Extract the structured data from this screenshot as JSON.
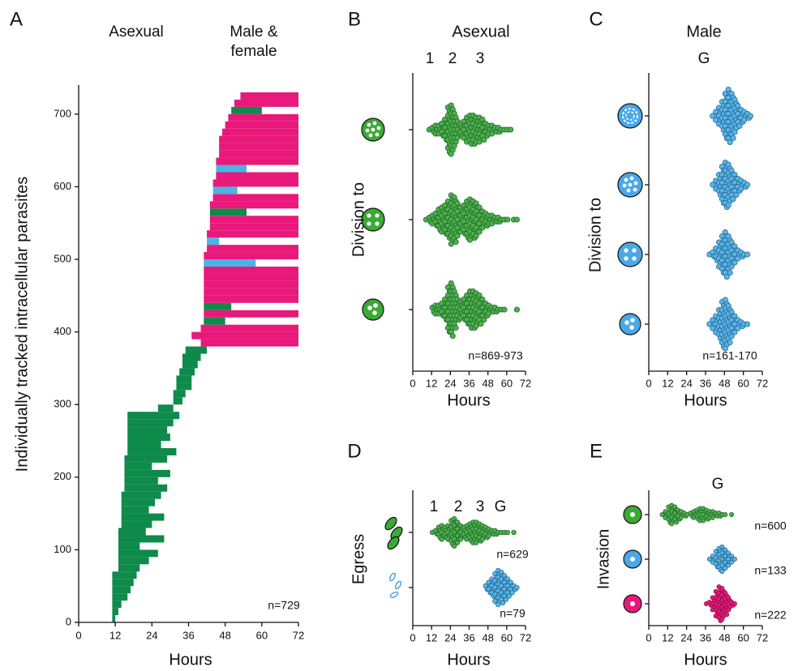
{
  "chart_data": [
    {
      "type": "range",
      "label": "A",
      "annotations": [
        "Asexual",
        "Male &",
        "female"
      ],
      "xlabel": "Hours",
      "ylabel": "Individually tracked intracellular parasites",
      "note": "n=729",
      "xlim": [
        0,
        72
      ],
      "xticks": [
        0,
        12,
        24,
        36,
        48,
        60,
        72
      ],
      "ylim": [
        0,
        740
      ],
      "yticks": [
        0,
        100,
        200,
        300,
        400,
        500,
        600,
        700
      ],
      "row_height": 10,
      "rows": [
        {
          "y": 0,
          "start": 11,
          "end": 12,
          "color": "#0e8a4a"
        },
        {
          "y": 10,
          "start": 11,
          "end": 13,
          "color": "#0e8a4a"
        },
        {
          "y": 20,
          "start": 11,
          "end": 14,
          "color": "#0e8a4a"
        },
        {
          "y": 30,
          "start": 11,
          "end": 16,
          "color": "#0e8a4a"
        },
        {
          "y": 40,
          "start": 11,
          "end": 17,
          "color": "#0e8a4a"
        },
        {
          "y": 50,
          "start": 11,
          "end": 18,
          "color": "#0e8a4a"
        },
        {
          "y": 60,
          "start": 11,
          "end": 19,
          "color": "#0e8a4a"
        },
        {
          "y": 70,
          "start": 13,
          "end": 20,
          "color": "#0e8a4a"
        },
        {
          "y": 80,
          "start": 13,
          "end": 23,
          "color": "#0e8a4a"
        },
        {
          "y": 90,
          "start": 13,
          "end": 26,
          "color": "#0e8a4a"
        },
        {
          "y": 100,
          "start": 13,
          "end": 20,
          "color": "#0e8a4a"
        },
        {
          "y": 110,
          "start": 13,
          "end": 28,
          "color": "#0e8a4a"
        },
        {
          "y": 120,
          "start": 13,
          "end": 22,
          "color": "#0e8a4a"
        },
        {
          "y": 130,
          "start": 14,
          "end": 24,
          "color": "#0e8a4a"
        },
        {
          "y": 140,
          "start": 14,
          "end": 28,
          "color": "#0e8a4a"
        },
        {
          "y": 150,
          "start": 14,
          "end": 23,
          "color": "#0e8a4a"
        },
        {
          "y": 160,
          "start": 14,
          "end": 25,
          "color": "#0e8a4a"
        },
        {
          "y": 170,
          "start": 14,
          "end": 27,
          "color": "#0e8a4a"
        },
        {
          "y": 180,
          "start": 15,
          "end": 29,
          "color": "#0e8a4a"
        },
        {
          "y": 190,
          "start": 15,
          "end": 26,
          "color": "#0e8a4a"
        },
        {
          "y": 200,
          "start": 15,
          "end": 30,
          "color": "#0e8a4a"
        },
        {
          "y": 210,
          "start": 15,
          "end": 24,
          "color": "#0e8a4a"
        },
        {
          "y": 220,
          "start": 15,
          "end": 29,
          "color": "#0e8a4a"
        },
        {
          "y": 230,
          "start": 16,
          "end": 32,
          "color": "#0e8a4a"
        },
        {
          "y": 240,
          "start": 16,
          "end": 27,
          "color": "#0e8a4a"
        },
        {
          "y": 250,
          "start": 16,
          "end": 30,
          "color": "#0e8a4a"
        },
        {
          "y": 260,
          "start": 16,
          "end": 29,
          "color": "#0e8a4a"
        },
        {
          "y": 270,
          "start": 16,
          "end": 31,
          "color": "#0e8a4a"
        },
        {
          "y": 280,
          "start": 16,
          "end": 33,
          "color": "#0e8a4a"
        },
        {
          "y": 290,
          "start": 26,
          "end": 31,
          "color": "#0e8a4a"
        },
        {
          "y": 300,
          "start": 31,
          "end": 34,
          "color": "#0e8a4a"
        },
        {
          "y": 310,
          "start": 31,
          "end": 35,
          "color": "#0e8a4a"
        },
        {
          "y": 320,
          "start": 32,
          "end": 37,
          "color": "#0e8a4a"
        },
        {
          "y": 330,
          "start": 32,
          "end": 37,
          "color": "#0e8a4a"
        },
        {
          "y": 340,
          "start": 33,
          "end": 38,
          "color": "#0e8a4a"
        },
        {
          "y": 350,
          "start": 34,
          "end": 39,
          "color": "#0e8a4a"
        },
        {
          "y": 360,
          "start": 34,
          "end": 40,
          "color": "#0e8a4a"
        },
        {
          "y": 370,
          "start": 35,
          "end": 42,
          "color": "#0e8a4a"
        },
        {
          "y": 380,
          "start": 40,
          "end": 72,
          "color": "#e8197a"
        },
        {
          "y": 390,
          "start": 37,
          "end": 72,
          "color": "#e8197a"
        },
        {
          "y": 400,
          "start": 40,
          "end": 72,
          "color": "#e8197a"
        },
        {
          "y": 410,
          "start": 41,
          "end": 48,
          "color": "#0e8a4a"
        },
        {
          "y": 420,
          "start": 41,
          "end": 72,
          "color": "#e8197a"
        },
        {
          "y": 430,
          "start": 41,
          "end": 50,
          "color": "#0e8a4a"
        },
        {
          "y": 440,
          "start": 41,
          "end": 72,
          "color": "#e8197a"
        },
        {
          "y": 450,
          "start": 41,
          "end": 72,
          "color": "#e8197a"
        },
        {
          "y": 460,
          "start": 41,
          "end": 72,
          "color": "#e8197a"
        },
        {
          "y": 470,
          "start": 41,
          "end": 72,
          "color": "#e8197a"
        },
        {
          "y": 480,
          "start": 41,
          "end": 72,
          "color": "#e8197a"
        },
        {
          "y": 490,
          "start": 41,
          "end": 58,
          "color": "#4db3e6"
        },
        {
          "y": 500,
          "start": 41,
          "end": 72,
          "color": "#e8197a"
        },
        {
          "y": 510,
          "start": 42,
          "end": 72,
          "color": "#e8197a"
        },
        {
          "y": 520,
          "start": 42,
          "end": 46,
          "color": "#4db3e6"
        },
        {
          "y": 530,
          "start": 42,
          "end": 72,
          "color": "#e8197a"
        },
        {
          "y": 540,
          "start": 43,
          "end": 72,
          "color": "#e8197a"
        },
        {
          "y": 550,
          "start": 43,
          "end": 72,
          "color": "#e8197a"
        },
        {
          "y": 560,
          "start": 43,
          "end": 55,
          "color": "#0e8a4a"
        },
        {
          "y": 570,
          "start": 43,
          "end": 72,
          "color": "#e8197a"
        },
        {
          "y": 580,
          "start": 44,
          "end": 72,
          "color": "#e8197a"
        },
        {
          "y": 590,
          "start": 44,
          "end": 52,
          "color": "#4db3e6"
        },
        {
          "y": 600,
          "start": 44,
          "end": 72,
          "color": "#e8197a"
        },
        {
          "y": 610,
          "start": 45,
          "end": 72,
          "color": "#e8197a"
        },
        {
          "y": 620,
          "start": 45,
          "end": 55,
          "color": "#4db3e6"
        },
        {
          "y": 630,
          "start": 45,
          "end": 72,
          "color": "#e8197a"
        },
        {
          "y": 640,
          "start": 46,
          "end": 72,
          "color": "#e8197a"
        },
        {
          "y": 650,
          "start": 46,
          "end": 72,
          "color": "#e8197a"
        },
        {
          "y": 660,
          "start": 46,
          "end": 72,
          "color": "#e8197a"
        },
        {
          "y": 670,
          "start": 47,
          "end": 72,
          "color": "#e8197a"
        },
        {
          "y": 680,
          "start": 48,
          "end": 72,
          "color": "#e8197a"
        },
        {
          "y": 690,
          "start": 49,
          "end": 72,
          "color": "#e8197a"
        },
        {
          "y": 700,
          "start": 50,
          "end": 60,
          "color": "#0e8a4a"
        },
        {
          "y": 710,
          "start": 51,
          "end": 72,
          "color": "#e8197a"
        },
        {
          "y": 720,
          "start": 53,
          "end": 72,
          "color": "#e8197a"
        }
      ]
    },
    {
      "type": "swarm",
      "label": "B",
      "title": "Asexual",
      "annotations": [
        "1",
        "2",
        "3"
      ],
      "xlabel": "Hours",
      "ylabel": "Division to",
      "note": "n=869-973",
      "xlim": [
        0,
        72
      ],
      "xticks": [
        0,
        12,
        24,
        36,
        48,
        60,
        72
      ],
      "series": [
        {
          "color": "#4cb04a",
          "edgecolor": "#1a5c2a",
          "bins": [
            10,
            12,
            14,
            16,
            18,
            20,
            22,
            24,
            26,
            28,
            30,
            32,
            34,
            36,
            38,
            40,
            42,
            44,
            46,
            48,
            50,
            52,
            54,
            56,
            58,
            60,
            62,
            64
          ],
          "counts": [
            1,
            2,
            3,
            3,
            4,
            6,
            12,
            13,
            9,
            5,
            4,
            5,
            7,
            8,
            8,
            7,
            7,
            6,
            4,
            3,
            3,
            2,
            2,
            1,
            1,
            1,
            1
          ]
        },
        {
          "color": "#4cb04a",
          "edgecolor": "#1a5c2a",
          "bins": [
            8,
            10,
            12,
            14,
            16,
            18,
            20,
            22,
            24,
            26,
            28,
            30,
            32,
            34,
            36,
            38,
            40,
            42,
            44,
            46,
            48,
            50,
            52,
            54,
            56,
            58,
            60,
            62,
            64,
            66,
            68
          ],
          "counts": [
            1,
            2,
            3,
            4,
            6,
            7,
            8,
            10,
            13,
            12,
            9,
            7,
            8,
            10,
            11,
            10,
            9,
            7,
            5,
            4,
            3,
            3,
            2,
            2,
            1,
            1,
            1,
            0,
            1,
            1
          ]
        },
        {
          "color": "#4cb04a",
          "edgecolor": "#1a5c2a",
          "bins": [
            12,
            14,
            16,
            18,
            20,
            22,
            24,
            26,
            28,
            30,
            32,
            34,
            36,
            38,
            40,
            42,
            44,
            46,
            48,
            50,
            52,
            54,
            56,
            58,
            60,
            62,
            64,
            66,
            68
          ],
          "counts": [
            2,
            3,
            3,
            4,
            6,
            12,
            14,
            10,
            6,
            5,
            6,
            8,
            10,
            10,
            9,
            8,
            6,
            4,
            3,
            2,
            2,
            1,
            1,
            1,
            0,
            0,
            0,
            1
          ]
        }
      ]
    },
    {
      "type": "swarm",
      "label": "C",
      "title": "Male",
      "annotations": [
        "G"
      ],
      "xlabel": "Hours",
      "ylabel": "Division to",
      "note": "n=161-170",
      "xlim": [
        0,
        72
      ],
      "xticks": [
        0,
        12,
        24,
        36,
        48,
        60,
        72
      ],
      "series": [
        {
          "color": "#5ab4e8",
          "edgecolor": "#1d5f86",
          "bins": [
            40,
            42,
            44,
            46,
            48,
            50,
            52,
            54,
            56,
            58,
            60,
            62,
            64,
            66
          ],
          "counts": [
            1,
            3,
            5,
            8,
            12,
            14,
            12,
            9,
            6,
            4,
            3,
            2,
            1
          ]
        },
        {
          "color": "#5ab4e8",
          "edgecolor": "#1d5f86",
          "bins": [
            40,
            42,
            44,
            46,
            48,
            50,
            52,
            54,
            56,
            58,
            60,
            62,
            64
          ],
          "counts": [
            1,
            3,
            6,
            10,
            12,
            11,
            8,
            6,
            4,
            3,
            2,
            1
          ]
        },
        {
          "color": "#5ab4e8",
          "edgecolor": "#1d5f86",
          "bins": [
            38,
            40,
            42,
            44,
            46,
            48,
            50,
            52,
            54,
            56,
            58,
            60,
            62,
            64
          ],
          "counts": [
            1,
            2,
            4,
            7,
            10,
            12,
            10,
            7,
            5,
            3,
            2,
            1,
            1
          ]
        },
        {
          "color": "#5ab4e8",
          "edgecolor": "#1d5f86",
          "bins": [
            38,
            40,
            42,
            44,
            46,
            48,
            50,
            52,
            54,
            56,
            58,
            60,
            62,
            64
          ],
          "counts": [
            1,
            3,
            5,
            8,
            12,
            13,
            10,
            7,
            5,
            3,
            2,
            1,
            1
          ]
        }
      ]
    },
    {
      "type": "swarm",
      "label": "D",
      "annotations": [
        "1",
        "2",
        "3",
        "G"
      ],
      "xlabel": "Hours",
      "ylabel": "Egress",
      "xlim": [
        0,
        72
      ],
      "xticks": [
        0,
        12,
        24,
        36,
        48,
        60,
        72
      ],
      "series": [
        {
          "color": "#4cb04a",
          "edgecolor": "#1a5c2a",
          "note": "n=629",
          "bins": [
            12,
            14,
            16,
            18,
            20,
            22,
            24,
            26,
            28,
            30,
            32,
            34,
            36,
            38,
            40,
            42,
            44,
            46,
            48,
            50,
            52,
            54,
            56,
            58,
            60,
            62,
            64,
            66
          ],
          "counts": [
            1,
            2,
            4,
            5,
            4,
            5,
            8,
            9,
            7,
            5,
            4,
            5,
            6,
            7,
            7,
            6,
            5,
            4,
            3,
            2,
            2,
            1,
            1,
            1,
            1,
            0,
            1
          ]
        },
        {
          "color": "#5ab4e8",
          "edgecolor": "#1d5f86",
          "note": "n=79",
          "bins": [
            46,
            48,
            50,
            52,
            54,
            56,
            58,
            60,
            62,
            64,
            66,
            68
          ],
          "counts": [
            2,
            4,
            6,
            9,
            11,
            10,
            8,
            6,
            4,
            2,
            1
          ]
        }
      ]
    },
    {
      "type": "swarm",
      "label": "E",
      "annotations": [
        "G"
      ],
      "xlabel": "Hours",
      "ylabel": "Invasion",
      "xlim": [
        0,
        72
      ],
      "xticks": [
        0,
        12,
        24,
        36,
        48,
        60,
        72
      ],
      "series": [
        {
          "color": "#4cb04a",
          "edgecolor": "#1a5c2a",
          "note": "n=600",
          "bins": [
            8,
            10,
            12,
            14,
            16,
            18,
            20,
            22,
            24,
            26,
            28,
            30,
            32,
            34,
            36,
            38,
            40,
            42,
            44,
            46,
            48,
            50,
            52,
            54
          ],
          "counts": [
            1,
            3,
            6,
            7,
            6,
            4,
            3,
            2,
            1,
            2,
            3,
            4,
            5,
            5,
            4,
            3,
            3,
            2,
            2,
            1,
            1,
            0,
            1
          ]
        },
        {
          "color": "#5ab4e8",
          "edgecolor": "#1d5f86",
          "note": "n=133",
          "bins": [
            38,
            40,
            42,
            44,
            46,
            48,
            50,
            52,
            54,
            56
          ],
          "counts": [
            1,
            3,
            6,
            8,
            9,
            7,
            5,
            3,
            1
          ]
        },
        {
          "color": "#e8197a",
          "edgecolor": "#7a0e3f",
          "note": "n=222",
          "bins": [
            36,
            38,
            40,
            42,
            44,
            46,
            48,
            50,
            52,
            54,
            56
          ],
          "counts": [
            1,
            2,
            5,
            9,
            12,
            11,
            8,
            5,
            2,
            1
          ]
        }
      ]
    }
  ]
}
